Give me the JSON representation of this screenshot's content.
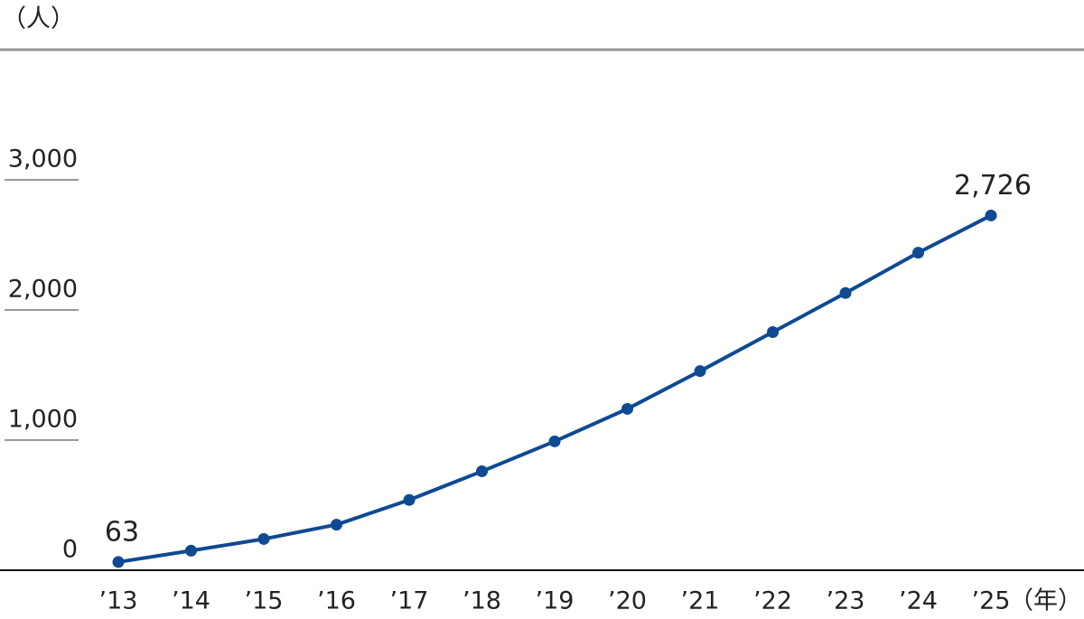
{
  "chart_data": {
    "type": "line",
    "y_unit_label": "（人）",
    "x_unit_label": "（年）",
    "categories": [
      "’13",
      "’14",
      "’15",
      "’16",
      "’17",
      "’18",
      "’19",
      "’20",
      "’21",
      "’22",
      "’23",
      "’24",
      "’25"
    ],
    "values": [
      63,
      150,
      240,
      350,
      540,
      760,
      990,
      1240,
      1530,
      1830,
      2130,
      2440,
      2726
    ],
    "value_labels": [
      "63",
      null,
      null,
      null,
      null,
      null,
      null,
      null,
      null,
      null,
      null,
      null,
      "2,726"
    ],
    "color": "#0f4a92",
    "ylim": [
      0,
      4000
    ],
    "yticks": [
      0,
      {
        "value": 1000,
        "label": "1,000"
      },
      {
        "value": 2000,
        "label": "2,000"
      },
      {
        "value": 3000,
        "label": "3,000"
      }
    ],
    "grid": true
  }
}
